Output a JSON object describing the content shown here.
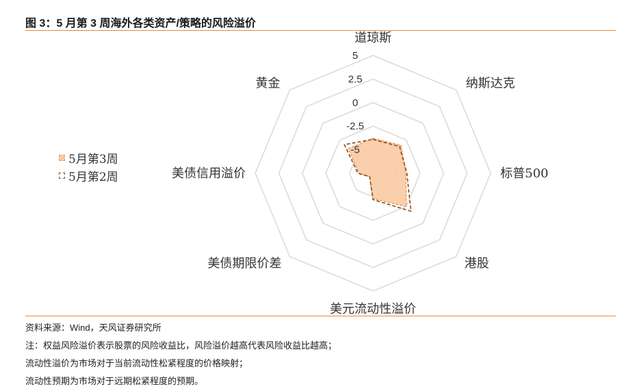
{
  "figure": {
    "title": "图 3：5 月第 3 周海外各类资产/策略的风险溢价"
  },
  "chart_data": {
    "type": "radar",
    "categories": [
      "道琼斯",
      "纳斯达克",
      "标普500",
      "港股",
      "美元流动性溢价",
      "美债期限价差",
      "美债信用溢价",
      "黄金"
    ],
    "radial_ticks": [
      "5",
      "2.5",
      "0",
      "-2.5",
      "-5"
    ],
    "rlim": [
      -7.5,
      5
    ],
    "grid": true,
    "legend_position": "left",
    "series": [
      {
        "name": "5月第3周",
        "style": "filled",
        "color": "#f8caa3",
        "values": [
          -3.8,
          -3.3,
          -4.0,
          -2.5,
          -4.8,
          -7.0,
          -6.0,
          -3.8
        ]
      },
      {
        "name": "5月第2周",
        "style": "dashed",
        "color": "#8a4a1a",
        "values": [
          -3.9,
          -3.5,
          -3.9,
          -1.8,
          -4.7,
          -7.0,
          -5.9,
          -3.2
        ]
      }
    ]
  },
  "notes": [
    "资料来源：Wind，天风证券研究所",
    "注：权益风险溢价表示股票的风险收益比，风险溢价越高代表风险收益比越高；",
    "流动性溢价为市场对于当前流动性松紧程度的价格映射；",
    "流动性预期为市场对于远期松紧程度的预期。"
  ]
}
